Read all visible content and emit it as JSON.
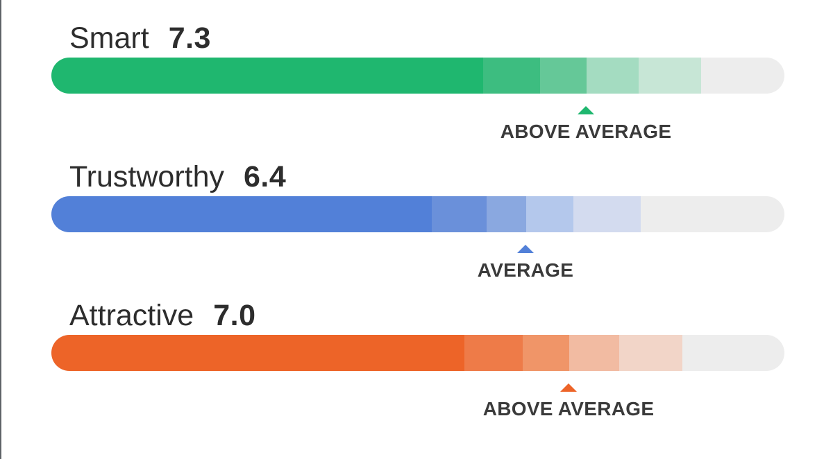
{
  "metrics": [
    {
      "label": "Smart",
      "score": "7.3",
      "rating": "ABOVE AVERAGE",
      "color": "#1fb76f",
      "segment_colors": [
        "#1fb76f",
        "#3dbd80",
        "#65c898",
        "#a4dcc1",
        "#c7e6d6"
      ],
      "marker_color": "#1fb76f"
    },
    {
      "label": "Trustworthy",
      "score": "6.4",
      "rating": "AVERAGE",
      "color": "#5280d8",
      "segment_colors": [
        "#5280d8",
        "#6a90da",
        "#8aa8e0",
        "#b4c8ec",
        "#d3dbef"
      ],
      "marker_color": "#5280d8"
    },
    {
      "label": "Attractive",
      "score": "7.0",
      "rating": "ABOVE AVERAGE",
      "color": "#ed6428",
      "segment_colors": [
        "#ed6428",
        "#ee7b48",
        "#f09568",
        "#f2bba2",
        "#f2d5c8"
      ],
      "marker_color": "#ed6428"
    }
  ]
}
